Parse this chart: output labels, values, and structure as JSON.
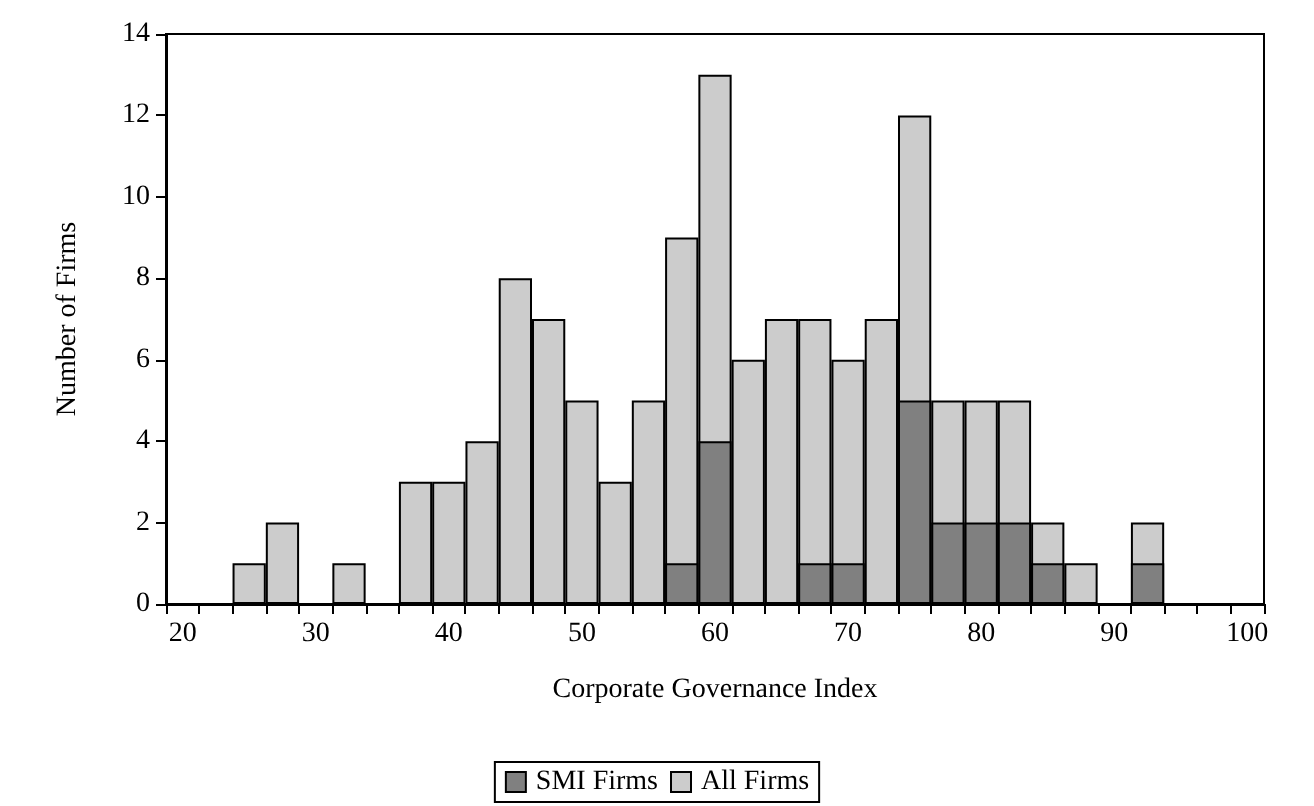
{
  "chart_data": {
    "type": "bar",
    "xlabel": "Corporate Governance Index",
    "ylabel": "Number of Firms",
    "categories": [
      "20",
      null,
      null,
      null,
      "30",
      null,
      null,
      null,
      "40",
      null,
      null,
      null,
      "50",
      null,
      null,
      null,
      "60",
      null,
      null,
      null,
      "70",
      null,
      null,
      null,
      "80",
      null,
      null,
      null,
      "90",
      null,
      null,
      null,
      "100"
    ],
    "series": [
      {
        "name": "SMI Firms",
        "color": "#808080",
        "values": [
          0,
          0,
          0,
          0,
          0,
          0,
          0,
          0,
          0,
          0,
          0,
          0,
          0,
          0,
          0,
          1,
          4,
          0,
          0,
          1,
          1,
          0,
          5,
          2,
          2,
          2,
          1,
          0,
          0,
          1,
          0,
          0,
          0
        ]
      },
      {
        "name": "All Firms",
        "color": "#cccccc",
        "values": [
          0,
          0,
          1,
          2,
          0,
          1,
          0,
          3,
          3,
          4,
          8,
          7,
          5,
          3,
          5,
          9,
          13,
          6,
          7,
          7,
          6,
          7,
          12,
          5,
          5,
          5,
          2,
          1,
          0,
          2,
          0,
          0,
          0
        ]
      }
    ],
    "ylim": [
      0,
      14
    ],
    "yticks": [
      0,
      2,
      4,
      6,
      8,
      10,
      12,
      14
    ],
    "grid": false,
    "legend": "bottom"
  }
}
